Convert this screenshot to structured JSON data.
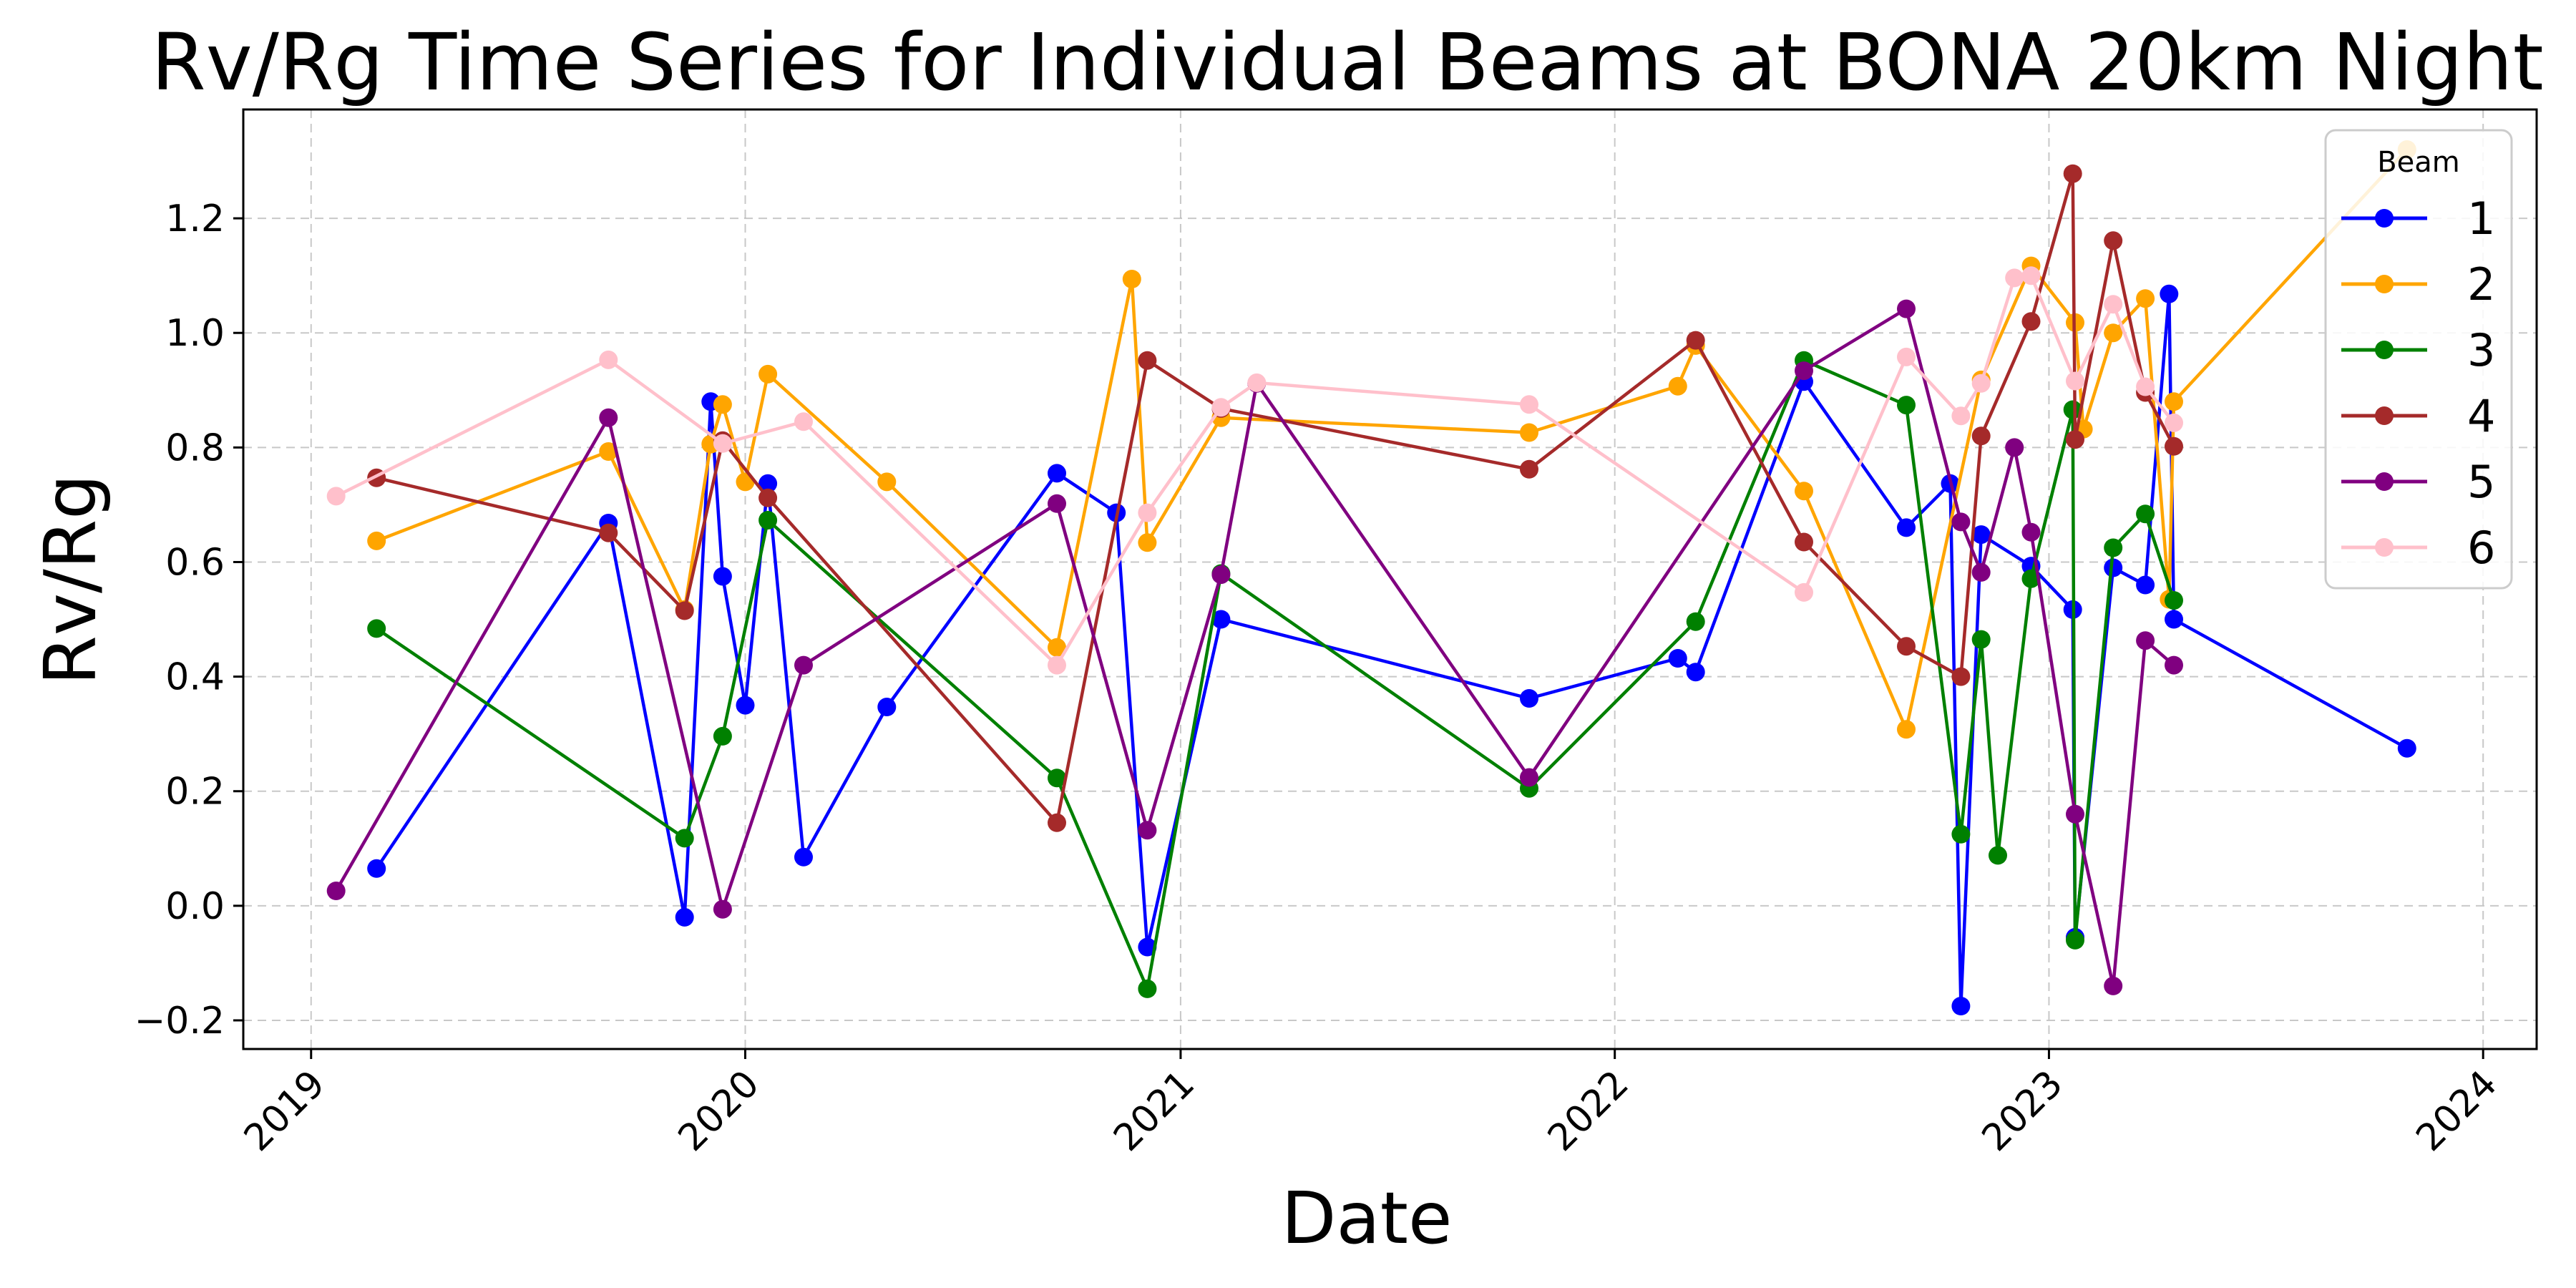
{
  "chart_data": {
    "type": "line",
    "title": "Rv/Rg Time Series for Individual Beams at BONA 20km Night",
    "xlabel": "Date",
    "ylabel": "Rv/Rg",
    "x_ticks": [
      "2019",
      "2020",
      "2021",
      "2022",
      "2023",
      "2024"
    ],
    "y_ticks": [
      "−0.2",
      "0.0",
      "0.2",
      "0.4",
      "0.6",
      "0.8",
      "1.0",
      "1.2"
    ],
    "xlim": [
      "2018-11-05",
      "2024-02-15"
    ],
    "ylim": [
      -0.25,
      1.39
    ],
    "grid": true,
    "legend": {
      "title": "Beam",
      "placement": "top-right"
    },
    "series": [
      {
        "name": "1",
        "color": "#0000ff",
        "points": [
          [
            "2019-02-25",
            0.065
          ],
          [
            "2019-09-08",
            0.668
          ],
          [
            "2019-11-11",
            -0.02
          ],
          [
            "2019-12-03",
            0.88
          ],
          [
            "2019-12-13",
            0.575
          ],
          [
            "2020-01-01",
            0.35
          ],
          [
            "2020-01-20",
            0.737
          ],
          [
            "2020-02-19",
            0.085
          ],
          [
            "2020-04-29",
            0.347
          ],
          [
            "2020-09-19",
            0.755
          ],
          [
            "2020-11-08",
            0.686
          ],
          [
            "2020-12-04",
            -0.072
          ],
          [
            "2021-02-04",
            0.5
          ],
          [
            "2021-10-21",
            0.362
          ],
          [
            "2022-02-23",
            0.432
          ],
          [
            "2022-03-10",
            0.408
          ],
          [
            "2022-06-09",
            0.915
          ],
          [
            "2022-09-03",
            0.66
          ],
          [
            "2022-10-10",
            0.737
          ],
          [
            "2022-10-19",
            -0.175
          ],
          [
            "2022-11-05",
            0.648
          ],
          [
            "2022-12-17",
            0.593
          ],
          [
            "2023-01-21",
            0.517
          ],
          [
            "2023-01-23",
            -0.055
          ],
          [
            "2023-02-24",
            0.59
          ],
          [
            "2023-03-23",
            0.56
          ],
          [
            "2023-04-12",
            1.068
          ],
          [
            "2023-04-16",
            0.5
          ],
          [
            "2023-10-29",
            0.275
          ]
        ]
      },
      {
        "name": "2",
        "color": "#ffa500",
        "points": [
          [
            "2019-02-25",
            0.637
          ],
          [
            "2019-09-08",
            0.793
          ],
          [
            "2019-11-11",
            0.517
          ],
          [
            "2019-12-03",
            0.806
          ],
          [
            "2019-12-13",
            0.875
          ],
          [
            "2020-01-01",
            0.74
          ],
          [
            "2020-01-20",
            0.928
          ],
          [
            "2020-04-29",
            0.74
          ],
          [
            "2020-09-19",
            0.451
          ],
          [
            "2020-11-21",
            1.094
          ],
          [
            "2020-12-04",
            0.634
          ],
          [
            "2021-02-04",
            0.852
          ],
          [
            "2021-10-21",
            0.826
          ],
          [
            "2022-02-23",
            0.907
          ],
          [
            "2022-03-10",
            0.978
          ],
          [
            "2022-06-09",
            0.724
          ],
          [
            "2022-09-03",
            0.308
          ],
          [
            "2022-11-05",
            0.918
          ],
          [
            "2022-12-17",
            1.117
          ],
          [
            "2023-01-23",
            1.018
          ],
          [
            "2023-01-30",
            0.832
          ],
          [
            "2023-02-24",
            1.0
          ],
          [
            "2023-03-23",
            1.06
          ],
          [
            "2023-04-12",
            0.535
          ],
          [
            "2023-04-16",
            0.88
          ],
          [
            "2023-10-29",
            1.32
          ]
        ]
      },
      {
        "name": "3",
        "color": "#008000",
        "points": [
          [
            "2019-02-25",
            0.484
          ],
          [
            "2019-11-11",
            0.118
          ],
          [
            "2019-12-13",
            0.296
          ],
          [
            "2020-01-20",
            0.673
          ],
          [
            "2020-09-19",
            0.223
          ],
          [
            "2020-12-04",
            -0.145
          ],
          [
            "2021-02-04",
            0.58
          ],
          [
            "2021-10-21",
            0.205
          ],
          [
            "2022-03-10",
            0.496
          ],
          [
            "2022-06-09",
            0.952
          ],
          [
            "2022-09-03",
            0.874
          ],
          [
            "2022-10-19",
            0.125
          ],
          [
            "2022-11-05",
            0.465
          ],
          [
            "2022-11-19",
            0.088
          ],
          [
            "2022-12-17",
            0.571
          ],
          [
            "2023-01-21",
            0.866
          ],
          [
            "2023-01-23",
            -0.06
          ],
          [
            "2023-02-24",
            0.625
          ],
          [
            "2023-03-23",
            0.684
          ],
          [
            "2023-04-16",
            0.533
          ]
        ]
      },
      {
        "name": "4",
        "color": "#a52a2a",
        "points": [
          [
            "2019-02-25",
            0.747
          ],
          [
            "2019-09-08",
            0.651
          ],
          [
            "2019-11-11",
            0.515
          ],
          [
            "2019-12-13",
            0.812
          ],
          [
            "2020-01-20",
            0.712
          ],
          [
            "2020-09-19",
            0.145
          ],
          [
            "2020-12-04",
            0.952
          ],
          [
            "2021-02-04",
            0.868
          ],
          [
            "2021-10-21",
            0.762
          ],
          [
            "2022-03-10",
            0.987
          ],
          [
            "2022-06-09",
            0.635
          ],
          [
            "2022-09-03",
            0.453
          ],
          [
            "2022-10-19",
            0.4
          ],
          [
            "2022-11-05",
            0.82
          ],
          [
            "2022-12-17",
            1.02
          ],
          [
            "2023-01-21",
            1.278
          ],
          [
            "2023-01-23",
            0.814
          ],
          [
            "2023-02-24",
            1.161
          ],
          [
            "2023-03-23",
            0.896
          ],
          [
            "2023-04-16",
            0.802
          ]
        ]
      },
      {
        "name": "5",
        "color": "#800080",
        "points": [
          [
            "2019-01-22",
            0.026
          ],
          [
            "2019-09-08",
            0.852
          ],
          [
            "2019-12-13",
            -0.006
          ],
          [
            "2020-02-19",
            0.42
          ],
          [
            "2020-09-19",
            0.702
          ],
          [
            "2020-12-04",
            0.132
          ],
          [
            "2021-02-04",
            0.578
          ],
          [
            "2021-03-06",
            0.912
          ],
          [
            "2021-10-21",
            0.224
          ],
          [
            "2022-06-09",
            0.934
          ],
          [
            "2022-09-03",
            1.042
          ],
          [
            "2022-10-19",
            0.67
          ],
          [
            "2022-11-05",
            0.582
          ],
          [
            "2022-12-03",
            0.8
          ],
          [
            "2022-12-17",
            0.652
          ],
          [
            "2023-01-23",
            0.16
          ],
          [
            "2023-02-24",
            -0.14
          ],
          [
            "2023-03-23",
            0.463
          ],
          [
            "2023-04-16",
            0.42
          ]
        ]
      },
      {
        "name": "6",
        "color": "#ffc0cb",
        "points": [
          [
            "2019-01-22",
            0.715
          ],
          [
            "2019-09-08",
            0.953
          ],
          [
            "2019-12-13",
            0.807
          ],
          [
            "2020-02-19",
            0.845
          ],
          [
            "2020-09-19",
            0.42
          ],
          [
            "2020-12-04",
            0.686
          ],
          [
            "2021-02-04",
            0.87
          ],
          [
            "2021-03-06",
            0.913
          ],
          [
            "2021-10-21",
            0.875
          ],
          [
            "2022-06-09",
            0.547
          ],
          [
            "2022-09-03",
            0.958
          ],
          [
            "2022-10-19",
            0.855
          ],
          [
            "2022-11-05",
            0.912
          ],
          [
            "2022-12-03",
            1.096
          ],
          [
            "2022-12-17",
            1.1
          ],
          [
            "2023-01-23",
            0.916
          ],
          [
            "2023-02-24",
            1.05
          ],
          [
            "2023-03-23",
            0.906
          ],
          [
            "2023-04-16",
            0.843
          ]
        ]
      }
    ]
  }
}
